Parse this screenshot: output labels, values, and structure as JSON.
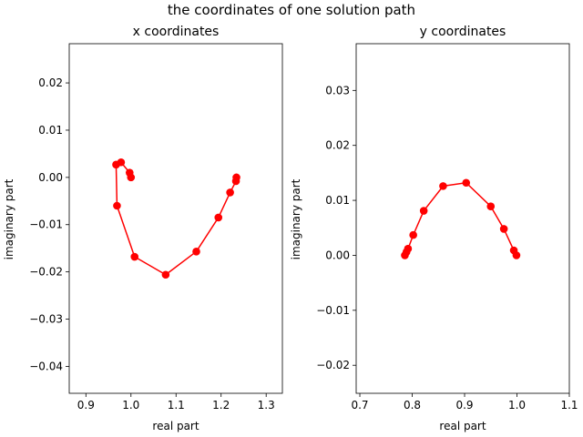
{
  "figure": {
    "title": "the coordinates of one solution path"
  },
  "chart_data": [
    {
      "type": "line",
      "title": "x coordinates",
      "xlabel": "real part",
      "ylabel": "imaginary part",
      "xlim": [
        0.863,
        1.336
      ],
      "ylim": [
        -0.0457,
        0.0283
      ],
      "xticks": [
        0.9,
        1.0,
        1.1,
        1.2,
        1.3
      ],
      "xtick_labels": [
        "0.9",
        "1.0",
        "1.1",
        "1.2",
        "1.3"
      ],
      "yticks": [
        -0.04,
        -0.03,
        -0.02,
        -0.01,
        0.0,
        0.01,
        0.02
      ],
      "ytick_labels": [
        "−0.04",
        "−0.03",
        "−0.02",
        "−0.01",
        "0.00",
        "0.01",
        "0.02"
      ],
      "grid": false,
      "color": "#ff0000",
      "marker": "circle",
      "series": [
        {
          "x": [
            1.0,
            0.997,
            0.978,
            0.967,
            0.969,
            1.008,
            1.077,
            1.145,
            1.194,
            1.22,
            1.233,
            1.234
          ],
          "y": [
            0.0,
            0.001,
            0.0032,
            0.0027,
            -0.006,
            -0.0168,
            -0.0206,
            -0.0157,
            -0.0085,
            -0.0032,
            -0.0008,
            0.0
          ]
        }
      ]
    },
    {
      "type": "line",
      "title": "y coordinates",
      "xlabel": "real part",
      "ylabel": "imaginary part",
      "xlim": [
        0.693,
        1.1
      ],
      "ylim": [
        -0.0251,
        0.0385
      ],
      "xticks": [
        0.7,
        0.8,
        0.9,
        1.0,
        1.1
      ],
      "xtick_labels": [
        "0.7",
        "0.8",
        "0.9",
        "1.0",
        "1.1"
      ],
      "yticks": [
        -0.02,
        -0.01,
        0.0,
        0.01,
        0.02,
        0.03
      ],
      "ytick_labels": [
        "−0.02",
        "−0.01",
        "0.00",
        "0.01",
        "0.02",
        "0.03"
      ],
      "grid": false,
      "color": "#ff0000",
      "marker": "circle",
      "series": [
        {
          "x": [
            0.786,
            0.789,
            0.792,
            0.802,
            0.822,
            0.859,
            0.903,
            0.95,
            0.975,
            0.994,
            0.999
          ],
          "y": [
            0.0,
            0.0006,
            0.0012,
            0.0037,
            0.0081,
            0.0126,
            0.0132,
            0.0089,
            0.0048,
            0.0009,
            0.0
          ]
        }
      ]
    }
  ]
}
